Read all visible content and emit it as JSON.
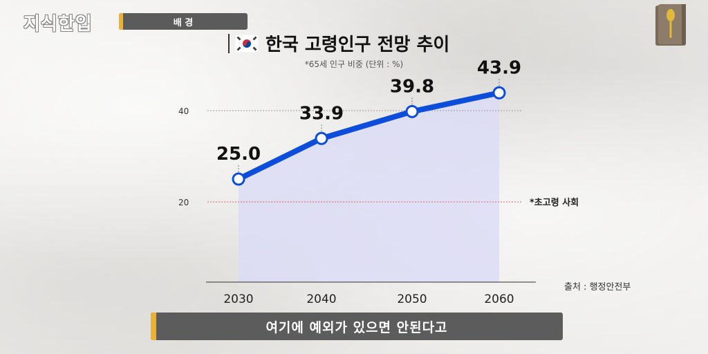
{
  "header": {
    "logo_text": "지식한입",
    "section_label": "배 경"
  },
  "colors": {
    "line": "#0d4ddb",
    "area": "#dcdcf6",
    "accent": "#e8b23a",
    "bar": "#5c5c5c"
  },
  "chart_data": {
    "type": "line",
    "title": "한국 고령인구 전망 추이",
    "subtitle": "*65세 인구 비중 (단위 : %)",
    "categories": [
      "2030",
      "2040",
      "2050",
      "2060"
    ],
    "series": [
      {
        "values": [
          25.0,
          33.9,
          39.8,
          43.9
        ]
      }
    ],
    "data_labels": [
      "25.0",
      "33.9",
      "39.8",
      "43.9"
    ],
    "y_ticks": [
      {
        "value": 40,
        "label": "40"
      },
      {
        "value": 20,
        "label": "20"
      }
    ],
    "reference_lines": [
      {
        "value": 40,
        "style": "dotted-gray",
        "label": ""
      },
      {
        "value": 20,
        "style": "dotted-red",
        "label": "*초고령 사회"
      }
    ],
    "area_fill": true,
    "source": "출처 : 행정안전부"
  },
  "caption": {
    "text": "여기에 예외가 있으면 안된다고"
  }
}
